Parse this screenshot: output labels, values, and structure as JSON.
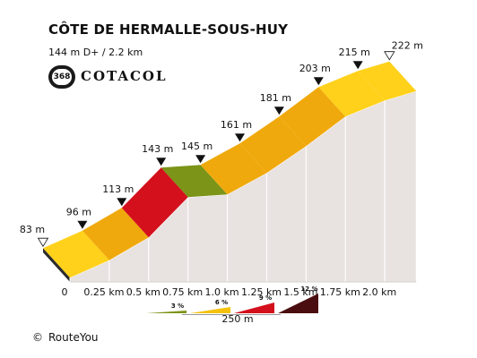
{
  "header": {
    "title": "CÔTE DE HERMALLE-SOUS-HUY",
    "stats": "144 m D+ / 2.2 km",
    "badge_number": "368",
    "brand": "COTACOL"
  },
  "chart_data": {
    "type": "area",
    "title": "CÔTE DE HERMALLE-SOUS-HUY",
    "distance_labels": [
      "0",
      "0.25 km",
      "0.5 km",
      "0.75 km",
      "1.0 km",
      "1.25 km",
      "1.5 km",
      "1.75 km",
      "2.0 km"
    ],
    "points": [
      {
        "km": 0.0,
        "elevation": 83,
        "label": "83 m",
        "marker": "open"
      },
      {
        "km": 0.25,
        "elevation": 96,
        "label": "96 m",
        "marker": "filled"
      },
      {
        "km": 0.5,
        "elevation": 113,
        "label": "113 m",
        "marker": "filled"
      },
      {
        "km": 0.75,
        "elevation": 143,
        "label": "143 m",
        "marker": "filled"
      },
      {
        "km": 1.0,
        "elevation": 145,
        "label": "145 m",
        "marker": "filled"
      },
      {
        "km": 1.25,
        "elevation": 161,
        "label": "161 m",
        "marker": "filled"
      },
      {
        "km": 1.5,
        "elevation": 181,
        "label": "181 m",
        "marker": "filled"
      },
      {
        "km": 1.75,
        "elevation": 203,
        "label": "203 m",
        "marker": "filled"
      },
      {
        "km": 2.0,
        "elevation": 215,
        "label": "215 m",
        "marker": "filled"
      },
      {
        "km": 2.2,
        "elevation": 222,
        "label": "222 m",
        "marker": "open"
      }
    ],
    "segments": [
      {
        "from_km": 0.0,
        "to_km": 0.25,
        "color": "#FFD11A"
      },
      {
        "from_km": 0.25,
        "to_km": 0.5,
        "color": "#F0A90C"
      },
      {
        "from_km": 0.5,
        "to_km": 0.75,
        "color": "#D4101C"
      },
      {
        "from_km": 0.75,
        "to_km": 1.0,
        "color": "#7C9418"
      },
      {
        "from_km": 1.0,
        "to_km": 1.25,
        "color": "#F0A90C"
      },
      {
        "from_km": 1.25,
        "to_km": 1.5,
        "color": "#F0A90C"
      },
      {
        "from_km": 1.5,
        "to_km": 1.75,
        "color": "#F0A90C"
      },
      {
        "from_km": 1.75,
        "to_km": 2.0,
        "color": "#FFD11A"
      },
      {
        "from_km": 2.0,
        "to_km": 2.2,
        "color": "#FFD11A"
      }
    ],
    "legend": {
      "labels": [
        "3 %",
        "6 %",
        "9 %",
        "12 %"
      ],
      "colors": [
        "#7C9418",
        "#F4C20D",
        "#D4101C",
        "#4A0E10"
      ],
      "scale_label": "250 m"
    }
  },
  "footer": {
    "copyright_symbol": "©",
    "copyright_text": "RouteYou"
  }
}
